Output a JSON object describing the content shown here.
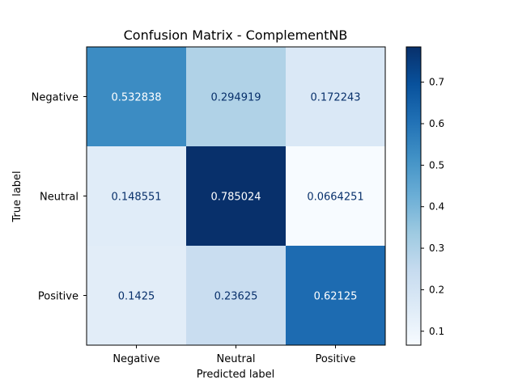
{
  "chart_data": {
    "type": "heatmap",
    "title": "Confusion Matrix - ComplementNB",
    "xlabel": "Predicted label",
    "ylabel": "True label",
    "x_categories": [
      "Negative",
      "Neutral",
      "Positive"
    ],
    "y_categories": [
      "Negative",
      "Neutral",
      "Positive"
    ],
    "values": [
      [
        0.532838,
        0.294919,
        0.172243
      ],
      [
        0.148551,
        0.785024,
        0.0664251
      ],
      [
        0.1425,
        0.23625,
        0.62125
      ]
    ],
    "value_labels": [
      [
        "0.532838",
        "0.294919",
        "0.172243"
      ],
      [
        "0.148551",
        "0.785024",
        "0.0664251"
      ],
      [
        "0.1425",
        "0.23625",
        "0.62125"
      ]
    ],
    "colormap": "Blues",
    "colorbar": {
      "min": 0.0664251,
      "max": 0.785024,
      "ticks": [
        0.1,
        0.2,
        0.3,
        0.4,
        0.5,
        0.6,
        0.7
      ],
      "tick_labels": [
        "0.1",
        "0.2",
        "0.3",
        "0.4",
        "0.5",
        "0.6",
        "0.7"
      ]
    }
  }
}
